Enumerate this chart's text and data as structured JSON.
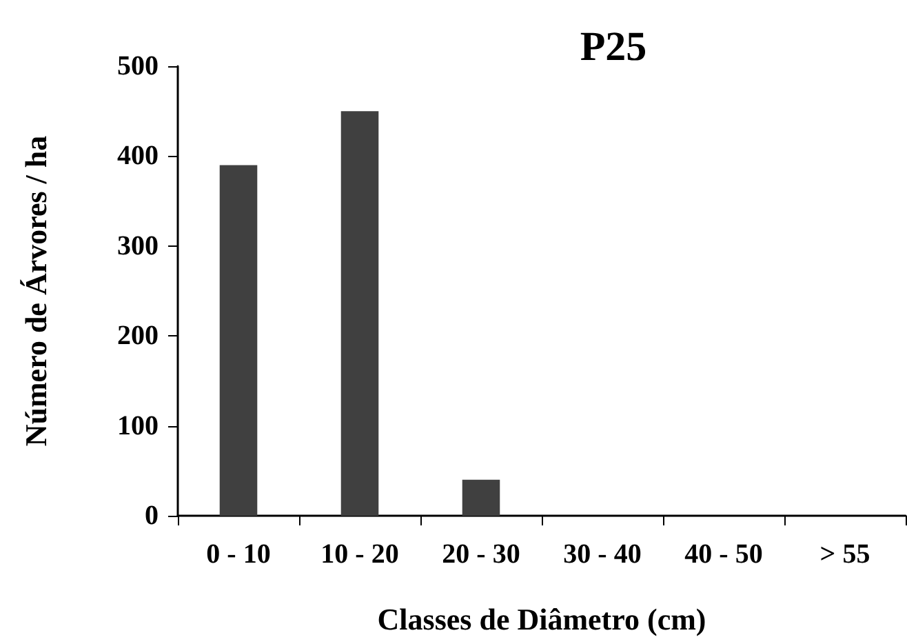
{
  "chart_data": {
    "type": "bar",
    "title": "P25",
    "xlabel": "Classes de Diâmetro (cm)",
    "ylabel": "Número de Árvores / ha",
    "categories": [
      "0 - 10",
      "10 - 20",
      "20 - 30",
      "30 - 40",
      "40 - 50",
      "> 55"
    ],
    "values": [
      390,
      450,
      40,
      0,
      0,
      0
    ],
    "color": "#404040",
    "ylim": [
      0,
      500
    ],
    "yticks": [
      0,
      100,
      200,
      300,
      400,
      500
    ],
    "grid": false
  }
}
